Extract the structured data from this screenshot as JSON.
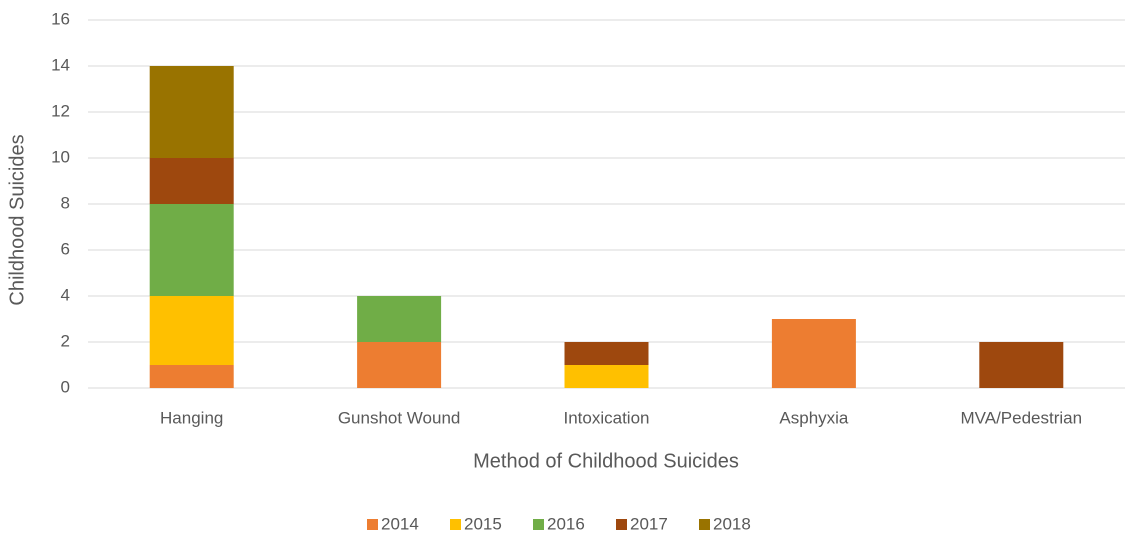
{
  "chart_data": {
    "type": "stacked_bar",
    "xlabel": "Method of Childhood Suicides",
    "ylabel": "Childhood Suicides",
    "categories": [
      "Hanging",
      "Gunshot Wound",
      "Intoxication",
      "Asphyxia",
      "MVA/Pedestrian"
    ],
    "series": [
      {
        "name": "2014",
        "color": "#ed7d31",
        "values": [
          1,
          2,
          0,
          3,
          0
        ]
      },
      {
        "name": "2015",
        "color": "#ffc000",
        "values": [
          3,
          0,
          1,
          0,
          0
        ]
      },
      {
        "name": "2016",
        "color": "#70ad47",
        "values": [
          4,
          2,
          0,
          0,
          0
        ]
      },
      {
        "name": "2017",
        "color": "#9e480e",
        "values": [
          2,
          0,
          1,
          0,
          2
        ]
      },
      {
        "name": "2018",
        "color": "#997300",
        "values": [
          4,
          0,
          0,
          0,
          0
        ]
      }
    ],
    "ylim": [
      0,
      16
    ],
    "yticks": [
      0,
      2,
      4,
      6,
      8,
      10,
      12,
      14,
      16
    ],
    "grid": true,
    "legend": "bottom"
  }
}
